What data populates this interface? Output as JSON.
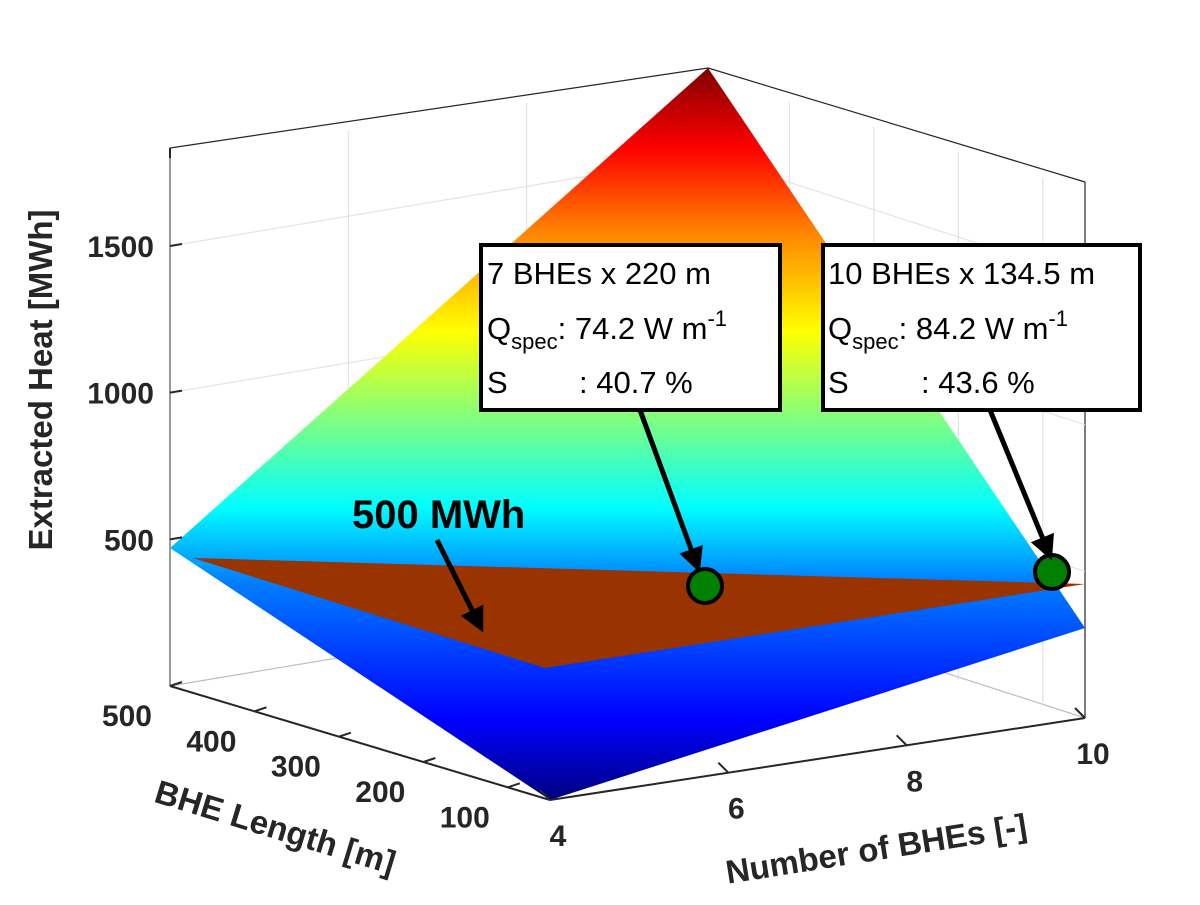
{
  "chart_data": {
    "type": "surface",
    "title": "",
    "xlabel": "Number of BHEs [-]",
    "ylabel": "BHE Length [m]",
    "zlabel": "Extracted Heat [MWh]",
    "x_ticks": [
      4,
      6,
      8,
      10
    ],
    "y_ticks": [
      100,
      200,
      300,
      400,
      500
    ],
    "z_ticks": [
      500,
      1000,
      1500
    ],
    "xlim": [
      4,
      10
    ],
    "ylim": [
      50,
      500
    ],
    "zlim": [
      0,
      1800
    ],
    "colormap": "jet",
    "grid": true,
    "surface_model": "Extracted heat rises with both the number of BHEs and the BHE length; peak ≈ 1800 MWh at 10 BHEs × 500 m",
    "threshold_plane": {
      "value": 500,
      "label": "500 MWh",
      "color": "#993300"
    },
    "markers": [
      {
        "n": 7,
        "length": 220,
        "heat": 500,
        "color": "#008000",
        "line1": "7 BHEs x 220 m",
        "q_prefix": "Q",
        "q_sub": "spec",
        "q_value": ": 74.2 W m",
        "q_sup": "-1",
        "s_label": "S",
        "s_value": ": 40.7 %"
      },
      {
        "n": 10,
        "length": 134.5,
        "heat": 500,
        "color": "#008000",
        "line1": "10 BHEs x 134.5 m",
        "q_prefix": "Q",
        "q_sub": "spec",
        "q_value": ": 84.2 W m",
        "q_sup": "-1",
        "s_label": "S",
        "s_value": ": 43.6 %"
      }
    ]
  }
}
